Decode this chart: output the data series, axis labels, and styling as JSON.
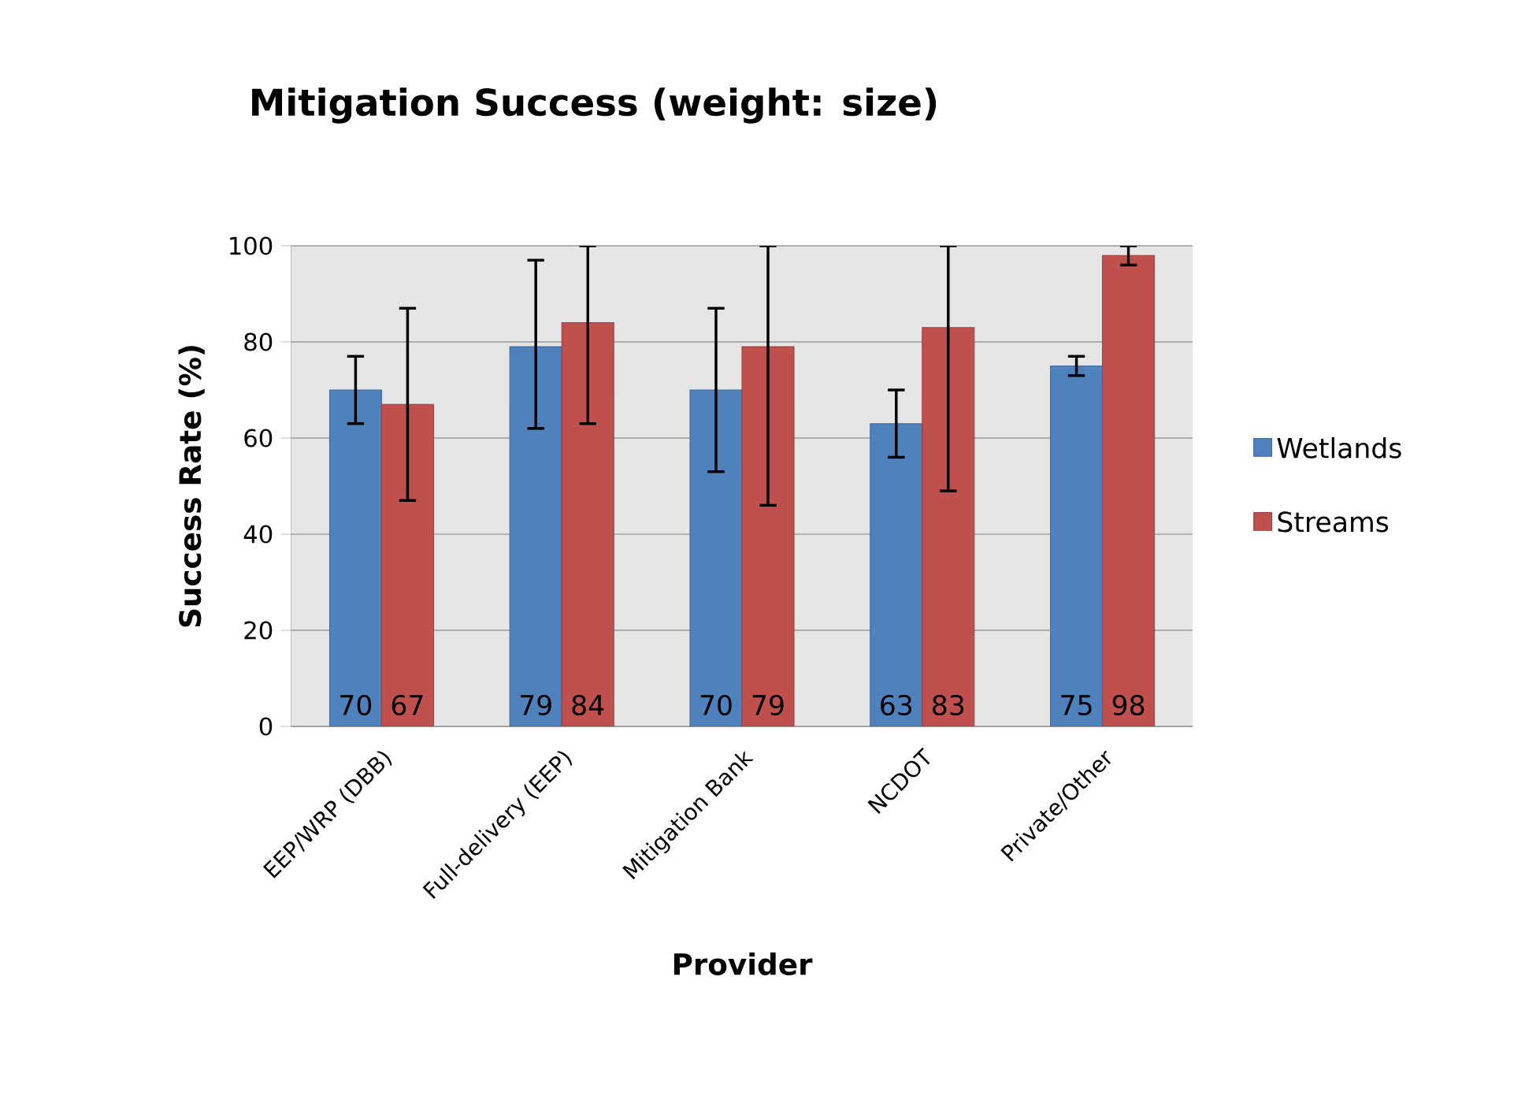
{
  "chart_data": {
    "type": "bar",
    "title": "Mitigation Success (weight: size)",
    "xlabel": "Provider",
    "ylabel": "Success Rate (%)",
    "categories": [
      "EEP/WRP (DBB)",
      "Full-delivery (EEP)",
      "Mitigation Bank",
      "NCDOT",
      "Private/Other"
    ],
    "series": [
      {
        "name": "Wetlands",
        "color": "#4f81bd",
        "values": [
          70,
          79,
          70,
          63,
          75
        ],
        "errors": [
          [
            63,
            77
          ],
          [
            62,
            97
          ],
          [
            53,
            87
          ],
          [
            56,
            70
          ],
          [
            73,
            77
          ]
        ]
      },
      {
        "name": "Streams",
        "color": "#c0504d",
        "values": [
          67,
          84,
          79,
          83,
          98
        ],
        "errors": [
          [
            47,
            87
          ],
          [
            63,
            100
          ],
          [
            46,
            100
          ],
          [
            49,
            100
          ],
          [
            96,
            100
          ]
        ]
      }
    ],
    "ylim": [
      0,
      100
    ],
    "yticks": [
      0,
      20,
      40,
      60,
      80,
      100
    ],
    "grid": "y",
    "legend": "right",
    "data_labels": true
  }
}
